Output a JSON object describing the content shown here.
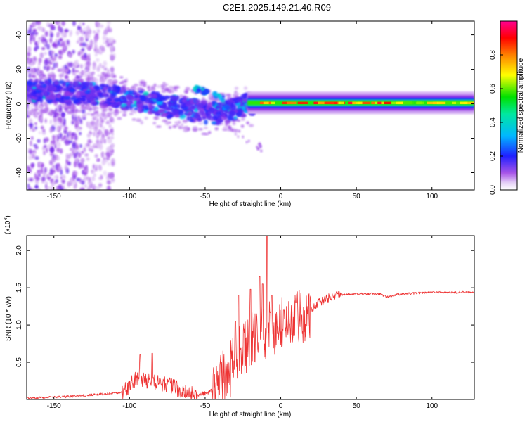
{
  "title": "C2E1.2025.149.21.40.R09",
  "colors": {
    "snr_line": "#ee3333",
    "colormap": [
      "#ffffff",
      "#d9b8f2",
      "#8a2be2",
      "#2020ff",
      "#00c8ff",
      "#00e060",
      "#ffff00",
      "#ff8000",
      "#ff0000",
      "#ff00a0"
    ]
  },
  "chart_data": [
    {
      "type": "heatmap",
      "xlabel": "Height of straight line (km)",
      "ylabel": "Frequency (Hz)",
      "xlim": [
        -168,
        128
      ],
      "ylim": [
        -50,
        48
      ],
      "xticks": [
        -150,
        -100,
        -50,
        0,
        50,
        100
      ],
      "xtick_labels": [
        "-150",
        "-100",
        "-50",
        "0",
        "50",
        "100"
      ],
      "yticks": [
        -40,
        -20,
        0,
        20,
        40
      ],
      "ytick_labels": [
        "-40",
        "-20",
        "0",
        "20",
        "40"
      ],
      "colorbar": {
        "label": "Normalized spectral amplitude",
        "range": [
          0,
          1
        ],
        "ticks": [
          0.0,
          0.2,
          0.4,
          0.6,
          0.8
        ],
        "tick_labels": [
          "0.0",
          "0.2",
          "0.4",
          "0.6",
          "0.8"
        ]
      },
      "features": {
        "main_ridge": [
          {
            "x": -168,
            "y": 7
          },
          {
            "x": -150,
            "y": 7
          },
          {
            "x": -130,
            "y": 6
          },
          {
            "x": -110,
            "y": 4
          },
          {
            "x": -90,
            "y": 1
          },
          {
            "x": -70,
            "y": -2
          },
          {
            "x": -50,
            "y": -5
          },
          {
            "x": -40,
            "y": -6
          },
          {
            "x": -30,
            "y": -3
          },
          {
            "x": -20,
            "y": 0
          },
          {
            "x": 0,
            "y": 1
          },
          {
            "x": 40,
            "y": 0.5
          },
          {
            "x": 80,
            "y": 0
          },
          {
            "x": 128,
            "y": 0
          }
        ],
        "upper_branch": [
          {
            "x": -57,
            "y": 9
          },
          {
            "x": -45,
            "y": 6
          },
          {
            "x": -38,
            "y": 3
          }
        ],
        "lower_tail": [
          {
            "x": -40,
            "y": -7
          },
          {
            "x": -30,
            "y": -16
          },
          {
            "x": -20,
            "y": -22
          },
          {
            "x": -12,
            "y": -26
          }
        ],
        "diffuse_region": {
          "x_range": [
            -168,
            -110
          ],
          "y_range": [
            -50,
            48
          ]
        }
      }
    },
    {
      "type": "line",
      "xlabel": "Height of straight line (km)",
      "ylabel": "SNR (10 * v/v)",
      "multiplier_label": "(x10",
      "multiplier_exp": "4",
      "multiplier_close": ")",
      "xlim": [
        -168,
        128
      ],
      "ylim": [
        0,
        2.2
      ],
      "xticks": [
        -150,
        -100,
        -50,
        0,
        50,
        100
      ],
      "xtick_labels": [
        "-150",
        "-100",
        "-50",
        "0",
        "50",
        "100"
      ],
      "yticks": [
        0.5,
        1.0,
        1.5,
        2.0
      ],
      "ytick_labels": [
        "0.5",
        "1.0",
        "1.5",
        "2.0"
      ],
      "series": [
        {
          "values_envelope": [
            {
              "x": -168,
              "y": 0.02
            },
            {
              "x": -140,
              "y": 0.04
            },
            {
              "x": -120,
              "y": 0.07
            },
            {
              "x": -105,
              "y": 0.1
            },
            {
              "x": -95,
              "y": 0.3
            },
            {
              "x": -85,
              "y": 0.25
            },
            {
              "x": -75,
              "y": 0.22
            },
            {
              "x": -65,
              "y": 0.12
            },
            {
              "x": -55,
              "y": 0.06
            },
            {
              "x": -45,
              "y": 0.12
            },
            {
              "x": -35,
              "y": 0.4
            },
            {
              "x": -25,
              "y": 0.7
            },
            {
              "x": -15,
              "y": 0.9
            },
            {
              "x": -5,
              "y": 1.0
            },
            {
              "x": 5,
              "y": 1.05
            },
            {
              "x": 15,
              "y": 1.15
            },
            {
              "x": 25,
              "y": 1.3
            },
            {
              "x": 35,
              "y": 1.4
            },
            {
              "x": 50,
              "y": 1.42
            },
            {
              "x": 65,
              "y": 1.42
            },
            {
              "x": 70,
              "y": 1.38
            },
            {
              "x": 80,
              "y": 1.42
            },
            {
              "x": 100,
              "y": 1.44
            },
            {
              "x": 128,
              "y": 1.44
            }
          ],
          "spikes": [
            {
              "x": -93,
              "y": 0.6
            },
            {
              "x": -85,
              "y": 0.62
            },
            {
              "x": -30,
              "y": 1.05
            },
            {
              "x": -28,
              "y": 1.4
            },
            {
              "x": -20,
              "y": 1.48
            },
            {
              "x": -14,
              "y": 1.65
            },
            {
              "x": -12,
              "y": 1.55
            },
            {
              "x": -9,
              "y": 2.2
            },
            {
              "x": -6,
              "y": 1.4
            },
            {
              "x": 2,
              "y": 1.2
            },
            {
              "x": 10,
              "y": 1.3
            }
          ]
        }
      ]
    }
  ]
}
